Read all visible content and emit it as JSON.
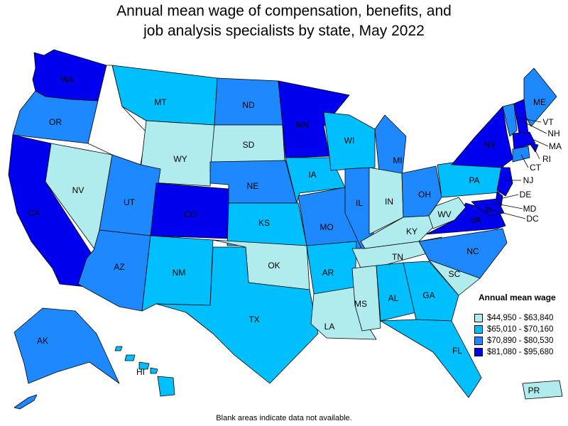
{
  "title_line1": "Annual mean wage of compensation, benefits, and",
  "title_line2": "job analysis specialists by state, May 2022",
  "note": "Blank areas indicate data not available.",
  "legend": {
    "title": "Annual mean wage",
    "bins": [
      {
        "label": "$44,950 - $63,840",
        "color": "#b0ecee"
      },
      {
        "label": "$65,010 - $70,160",
        "color": "#00bfff"
      },
      {
        "label": "$70,890 - $80,530",
        "color": "#1e88ff"
      },
      {
        "label": "$81,080 - $95,680",
        "color": "#0000ee"
      }
    ]
  },
  "chart_data": {
    "type": "choropleth",
    "no_data": [
      "ID"
    ],
    "states": {
      "WA": 3,
      "OR": 2,
      "CA": 3,
      "NV": 0,
      "ID": null,
      "MT": 1,
      "WY": 0,
      "UT": 2,
      "AZ": 2,
      "CO": 3,
      "NM": 1,
      "ND": 2,
      "SD": 0,
      "NE": 2,
      "KS": 1,
      "OK": 0,
      "TX": 1,
      "MN": 3,
      "IA": 1,
      "MO": 2,
      "AR": 1,
      "LA": 0,
      "WI": 1,
      "IL": 2,
      "MI": 2,
      "IN": 0,
      "OH": 2,
      "KY": 0,
      "TN": 0,
      "MS": 0,
      "AL": 1,
      "GA": 1,
      "FL": 1,
      "SC": 0,
      "NC": 2,
      "VA": 3,
      "WV": 0,
      "PA": 1,
      "NY": 3,
      "ME": 2,
      "VT": 2,
      "NH": 3,
      "MA": 3,
      "RI": 3,
      "CT": 2,
      "NJ": 3,
      "DE": 3,
      "MD": 3,
      "DC": 3,
      "AK": 2,
      "HI": 1,
      "PR": 0
    },
    "labels": [
      "WA",
      "OR",
      "CA",
      "NV",
      "MT",
      "WY",
      "UT",
      "AZ",
      "CO",
      "NM",
      "ND",
      "SD",
      "NE",
      "KS",
      "OK",
      "TX",
      "MN",
      "IA",
      "MO",
      "AR",
      "LA",
      "WI",
      "IL",
      "MI",
      "IN",
      "OH",
      "KY",
      "TN",
      "MS",
      "AL",
      "GA",
      "FL",
      "SC",
      "NC",
      "VA",
      "WV",
      "PA",
      "NY",
      "ME",
      "VT",
      "NH",
      "MA",
      "RI",
      "CT",
      "NJ",
      "DE",
      "MD",
      "DC",
      "AK",
      "HI",
      "PR"
    ]
  }
}
